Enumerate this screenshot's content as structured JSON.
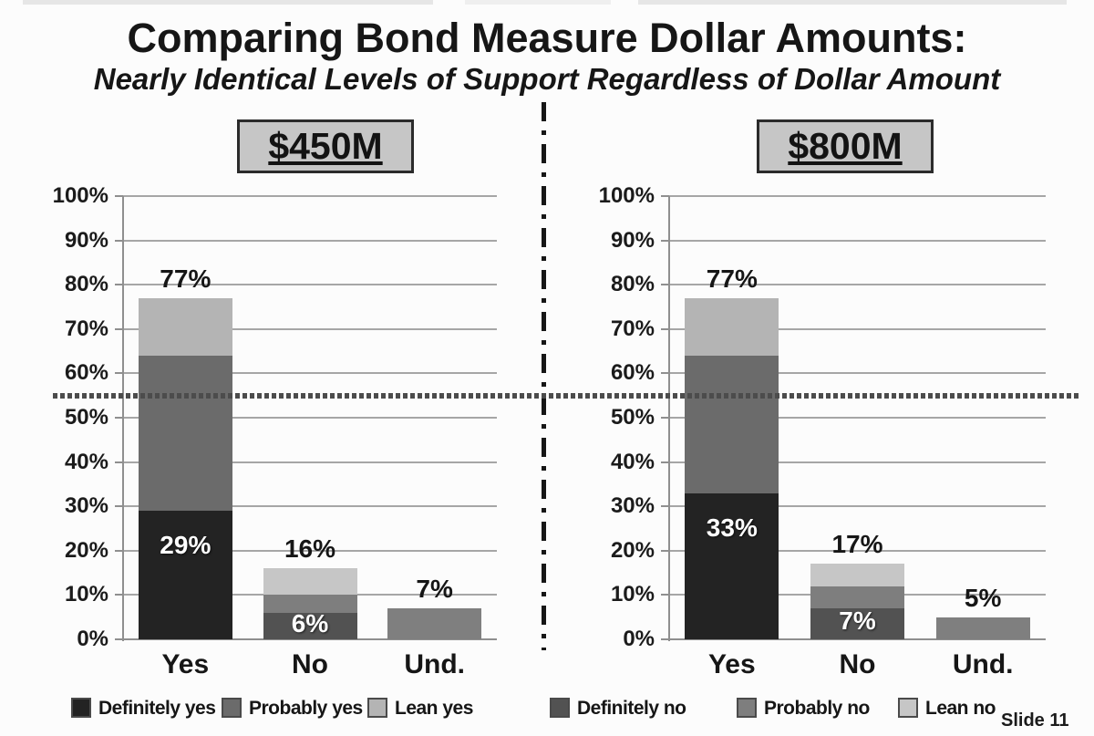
{
  "title": "Comparing Bond Measure Dollar Amounts:",
  "subtitle": "Nearly Identical Levels of Support Regardless of Dollar Amount",
  "slide_number": "Slide 11",
  "colors": {
    "definitely_yes": "#232323",
    "probably_yes": "#6b6b6b",
    "lean_yes": "#b4b4b4",
    "definitely_no": "#525252",
    "probably_no": "#7e7e7e",
    "lean_no": "#c6c6c6",
    "undecided": "#7f7f7f"
  },
  "y_axis": {
    "labels": [
      "0%",
      "10%",
      "20%",
      "30%",
      "40%",
      "50%",
      "60%",
      "70%",
      "80%",
      "90%",
      "100%"
    ],
    "min": 0,
    "max": 100,
    "step": 10
  },
  "reference_line": {
    "value": 55
  },
  "chart_data": [
    {
      "type": "bar",
      "stacked": true,
      "title": "$450M",
      "categories": [
        "Yes",
        "No",
        "Und."
      ],
      "ylim": [
        0,
        100
      ],
      "bars": [
        {
          "category": "Yes",
          "total": 77,
          "total_label": "77%",
          "inside_label": {
            "text": "29%",
            "segment_index": 0
          },
          "segments": [
            {
              "name": "Definitely yes",
              "value": 29,
              "color": "definitely_yes"
            },
            {
              "name": "Probably yes",
              "value": 35,
              "color": "probably_yes"
            },
            {
              "name": "Lean yes",
              "value": 13,
              "color": "lean_yes"
            }
          ]
        },
        {
          "category": "No",
          "total": 16,
          "total_label": "16%",
          "inside_label": {
            "text": "6%",
            "segment_index": 0
          },
          "segments": [
            {
              "name": "Definitely no",
              "value": 6,
              "color": "definitely_no"
            },
            {
              "name": "Probably no",
              "value": 4,
              "color": "probably_no"
            },
            {
              "name": "Lean no",
              "value": 6,
              "color": "lean_no"
            }
          ]
        },
        {
          "category": "Und.",
          "total": 7,
          "total_label": "7%",
          "segments": [
            {
              "name": "Undecided",
              "value": 7,
              "color": "undecided"
            }
          ]
        }
      ]
    },
    {
      "type": "bar",
      "stacked": true,
      "title": "$800M",
      "categories": [
        "Yes",
        "No",
        "Und."
      ],
      "ylim": [
        0,
        100
      ],
      "bars": [
        {
          "category": "Yes",
          "total": 77,
          "total_label": "77%",
          "inside_label": {
            "text": "33%",
            "segment_index": 0
          },
          "segments": [
            {
              "name": "Definitely yes",
              "value": 33,
              "color": "definitely_yes"
            },
            {
              "name": "Probably yes",
              "value": 31,
              "color": "probably_yes"
            },
            {
              "name": "Lean yes",
              "value": 13,
              "color": "lean_yes"
            }
          ]
        },
        {
          "category": "No",
          "total": 17,
          "total_label": "17%",
          "inside_label": {
            "text": "7%",
            "segment_index": 0
          },
          "segments": [
            {
              "name": "Definitely no",
              "value": 7,
              "color": "definitely_no"
            },
            {
              "name": "Probably no",
              "value": 5,
              "color": "probably_no"
            },
            {
              "name": "Lean no",
              "value": 5,
              "color": "lean_no"
            }
          ]
        },
        {
          "category": "Und.",
          "total": 5,
          "total_label": "5%",
          "segments": [
            {
              "name": "Undecided",
              "value": 5,
              "color": "undecided"
            }
          ]
        }
      ]
    }
  ],
  "legend": [
    {
      "label": "Definitely yes",
      "color": "definitely_yes"
    },
    {
      "label": "Probably yes",
      "color": "probably_yes"
    },
    {
      "label": "Lean yes",
      "color": "lean_yes"
    },
    {
      "label": "Definitely no",
      "color": "definitely_no"
    },
    {
      "label": "Probably no",
      "color": "probably_no"
    },
    {
      "label": "Lean no",
      "color": "lean_no"
    }
  ]
}
